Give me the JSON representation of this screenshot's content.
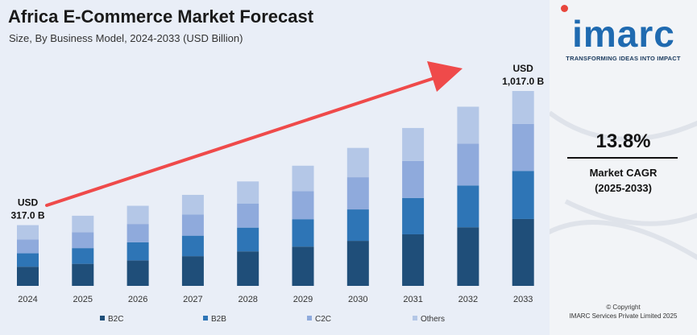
{
  "title": "Africa E-Commerce Market Forecast",
  "subtitle": "Size, By Business Model, 2024-2033 (USD Billion)",
  "chart_data": {
    "type": "bar",
    "stacked": true,
    "categories": [
      "2024",
      "2025",
      "2026",
      "2027",
      "2028",
      "2029",
      "2030",
      "2031",
      "2032",
      "2033"
    ],
    "series": [
      {
        "name": "B2C",
        "color": "#1f4e79",
        "values": [
          100,
          115,
          133,
          155,
          180,
          205,
          235,
          269,
          306,
          349
        ]
      },
      {
        "name": "B2B",
        "color": "#2e75b6",
        "values": [
          70,
          82,
          94,
          107,
          124,
          143,
          164,
          190,
          218,
          251
        ]
      },
      {
        "name": "C2C",
        "color": "#8faadc",
        "values": [
          72,
          83,
          96,
          110,
          126,
          146,
          168,
          193,
          218,
          245
        ]
      },
      {
        "name": "Others",
        "color": "#b4c7e7",
        "values": [
          75,
          86,
          95,
          103,
          115,
          133,
          153,
          172,
          193,
          172
        ]
      }
    ],
    "annotations": [
      {
        "category": "2024",
        "line1": "USD",
        "line2": "317.0 B"
      },
      {
        "category": "2033",
        "line1": "USD",
        "line2": "1,017.0 B"
      }
    ],
    "ylim": [
      0,
      1017
    ],
    "legend_position": "bottom",
    "grid": false
  },
  "side_panel": {
    "logo_text": "imarc",
    "tagline": "TRANSFORMING IDEAS INTO IMPACT",
    "cagr_value": "13.8%",
    "cagr_label": "Market CAGR",
    "cagr_period": "(2025-2033)",
    "copyright_line1": "© Copyright",
    "copyright_line2": "IMARC Services Private Limited 2025"
  },
  "colors": {
    "arrow": "#ef4a4a",
    "panel_bg": "#e9eef7",
    "brand_blue": "#1f6ab0"
  }
}
